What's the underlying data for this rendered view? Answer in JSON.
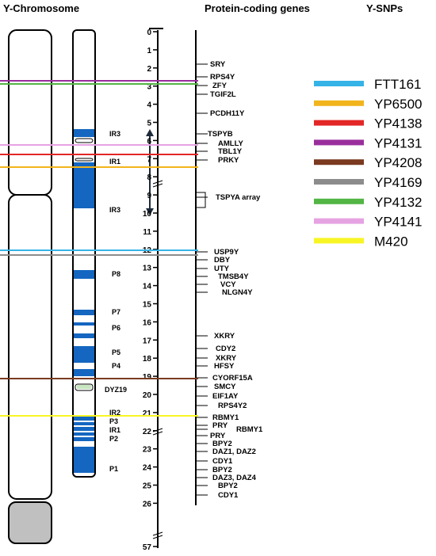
{
  "headers": {
    "chromosome": "Y-Chromosome",
    "genes": "Protein-coding genes",
    "snps": "Y-SNPs"
  },
  "scale": {
    "ticks": [
      "0",
      "1",
      "2",
      "3",
      "4",
      "5",
      "6",
      "7",
      "8",
      "9",
      "10",
      "11",
      "12",
      "13",
      "14",
      "15",
      "16",
      "17",
      "18",
      "19",
      "20",
      "21",
      "22",
      "23",
      "24",
      "25",
      "26",
      "57"
    ]
  },
  "band_labels": [
    {
      "id": "ir3a",
      "label": "IR3"
    },
    {
      "id": "ir1a",
      "label": "IR1"
    },
    {
      "id": "ir3b",
      "label": "IR3"
    },
    {
      "id": "p8",
      "label": "P8"
    },
    {
      "id": "p7",
      "label": "P7"
    },
    {
      "id": "p6",
      "label": "P6"
    },
    {
      "id": "p5",
      "label": "P5"
    },
    {
      "id": "p4",
      "label": "P4"
    },
    {
      "id": "dyz19",
      "label": "DYZ19"
    },
    {
      "id": "ir2",
      "label": "IR2"
    },
    {
      "id": "p3",
      "label": "P3"
    },
    {
      "id": "ir1b",
      "label": "IR1"
    },
    {
      "id": "p2",
      "label": "P2"
    },
    {
      "id": "p1",
      "label": "P1"
    }
  ],
  "genes": [
    "SRY",
    "RPS4Y",
    "ZFY",
    "TGIF2L",
    "PCDH11Y",
    "TSPYB",
    "AMLLY",
    "TBL1Y",
    "PRKY",
    "TSPYA array",
    "USP9Y",
    "DBY",
    "UTY",
    "TMSB4Y",
    "VCY",
    "NLGN4Y",
    "XKRY",
    "CDY2",
    "XKRY",
    "HFSY",
    "CYORF15A",
    "SMCY",
    "EIF1AY",
    "RPS4Y2",
    "RBMY1",
    "PRY",
    "RBMY1",
    "PRY",
    "BPY2",
    "DAZ1, DAZ2",
    "CDY1",
    "BPY2",
    "DAZ3, DAZ4",
    "BPY2",
    "CDY1"
  ],
  "snps": [
    {
      "name": "FTT161",
      "color": "#35b3e6"
    },
    {
      "name": "YP6500",
      "color": "#f2b41c"
    },
    {
      "name": "YP4138",
      "color": "#e32626"
    },
    {
      "name": "YP4131",
      "color": "#9a2e9c"
    },
    {
      "name": "YP4208",
      "color": "#7a3a20"
    },
    {
      "name": "YP4169",
      "color": "#8c8c8c"
    },
    {
      "name": "YP4132",
      "color": "#52b544"
    },
    {
      "name": "YP4141",
      "color": "#e6a3e2"
    },
    {
      "name": "M420",
      "color": "#f8f524"
    }
  ],
  "colors": {
    "band_fill": "#1466c0",
    "centromere": "#c0c0c0",
    "arrow": "#1d2a3a"
  }
}
